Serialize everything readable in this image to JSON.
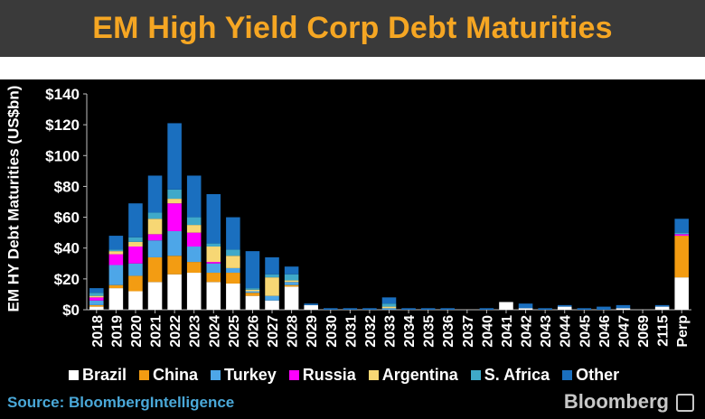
{
  "title": "EM High Yield Corp Debt Maturities",
  "source": "Source: BloombergIntelligence",
  "brand": "Bloomberg",
  "brand_icon": "bloomberg-terminal-icon",
  "colors": {
    "title_text": "#f5a623",
    "title_bg": "#3a3a3a",
    "chart_bg": "#000000",
    "source_text": "#4aa8d8"
  },
  "chart_data": {
    "type": "bar",
    "stacked": true,
    "title": "EM High Yield Corp Debt Maturities",
    "xlabel": "",
    "ylabel": "EM HY Debt Maturities (US$bn)",
    "ylim": [
      0,
      140
    ],
    "yticks": [
      "$0",
      "$20",
      "$40",
      "$60",
      "$80",
      "$100",
      "$120",
      "$140"
    ],
    "ytick_values": [
      0,
      20,
      40,
      60,
      80,
      100,
      120,
      140
    ],
    "grid": false,
    "legend_position": "bottom",
    "categories": [
      "2018",
      "2019",
      "2020",
      "2021",
      "2022",
      "2023",
      "2024",
      "2025",
      "2026",
      "2027",
      "2028",
      "2029",
      "2030",
      "2031",
      "2032",
      "2033",
      "2034",
      "2035",
      "2036",
      "2037",
      "2040",
      "2041",
      "2042",
      "2043",
      "2044",
      "2045",
      "2046",
      "2047",
      "2069",
      "2115",
      "Perp"
    ],
    "series": [
      {
        "name": "Brazil",
        "color": "#ffffff",
        "values": [
          2,
          14,
          12,
          18,
          23,
          24,
          18,
          17,
          9,
          6,
          15,
          3,
          0,
          0,
          0,
          0,
          0,
          0,
          0,
          0,
          0,
          5,
          1,
          0,
          2,
          0,
          0,
          1,
          0,
          2,
          21
        ]
      },
      {
        "name": "China",
        "color": "#f39c12",
        "values": [
          1,
          2,
          10,
          16,
          12,
          7,
          6,
          7,
          2,
          0,
          1,
          0,
          0,
          0,
          0,
          0,
          0,
          0,
          0,
          0,
          0,
          0,
          0,
          0,
          0,
          0,
          0,
          0,
          0,
          0,
          27
        ]
      },
      {
        "name": "Turkey",
        "color": "#4da6e8",
        "values": [
          3,
          13,
          8,
          11,
          16,
          10,
          6,
          3,
          1,
          3,
          2,
          0,
          0,
          0,
          0,
          1,
          0,
          0,
          0,
          0,
          0,
          0,
          0,
          0,
          0,
          0,
          0,
          0,
          0,
          0,
          0
        ]
      },
      {
        "name": "Russia",
        "color": "#ff00ff",
        "values": [
          2,
          7,
          11,
          4,
          18,
          9,
          1,
          0,
          0,
          0,
          0,
          0,
          0,
          0,
          0,
          0,
          0,
          0,
          0,
          0,
          0,
          0,
          0,
          0,
          0,
          0,
          0,
          0,
          0,
          0,
          1
        ]
      },
      {
        "name": "Argentina",
        "color": "#f7d774",
        "values": [
          1,
          2,
          3,
          10,
          3,
          5,
          10,
          8,
          1,
          12,
          1,
          0,
          0,
          0,
          0,
          1,
          0,
          0,
          0,
          0,
          0,
          0,
          0,
          0,
          0,
          0,
          0,
          0,
          0,
          0,
          0
        ]
      },
      {
        "name": "S. Africa",
        "color": "#3fa9c9",
        "values": [
          2,
          1,
          3,
          4,
          6,
          5,
          2,
          4,
          1,
          2,
          4,
          0,
          0,
          0,
          0,
          2,
          0,
          0,
          0,
          0,
          0,
          0,
          0,
          0,
          0,
          0,
          0,
          0,
          0,
          0,
          1
        ]
      },
      {
        "name": "Other",
        "color": "#1a6fbf",
        "values": [
          3,
          9,
          22,
          24,
          43,
          27,
          32,
          21,
          24,
          11,
          5,
          1,
          1,
          1,
          1,
          4,
          1,
          1,
          1,
          0,
          1,
          0,
          3,
          1,
          1,
          1,
          2,
          2,
          0,
          1,
          9
        ]
      }
    ]
  }
}
